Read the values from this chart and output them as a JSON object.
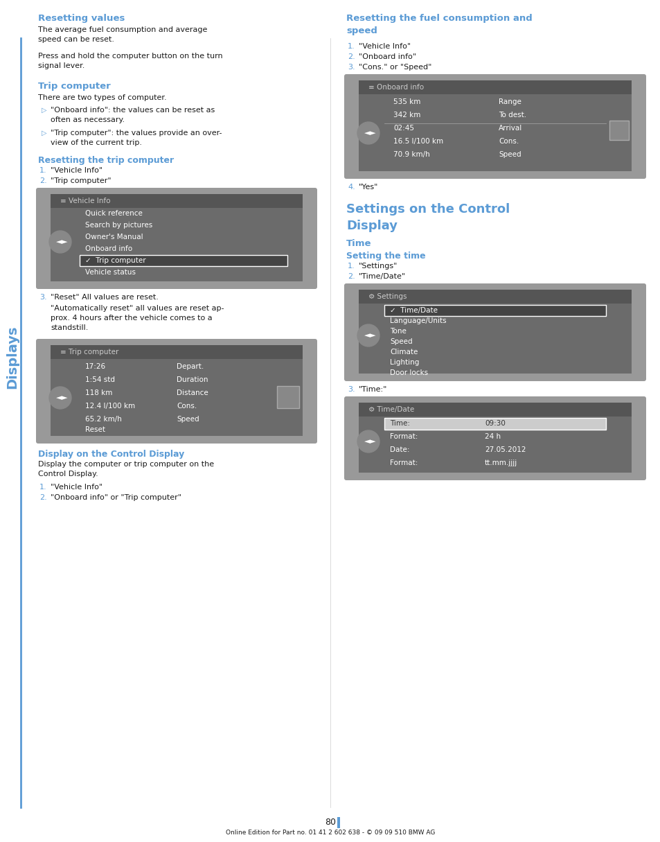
{
  "page_num": "80",
  "footer": "Online Edition for Part no. 01 41 2 602 638 - © 09 09 510 BMW AG",
  "sidebar_text": "Displays",
  "blue_color": "#5b9bd5",
  "dark_blue": "#1f5fa6",
  "text_color": "#1a1a1a",
  "bg_color": "#ffffff",
  "screen_bg": "#808080",
  "screen_dark": "#606060",
  "left_col": {
    "sections": [
      {
        "type": "heading",
        "text": "Resetting values"
      },
      {
        "type": "body",
        "lines": [
          "The average fuel consumption and average",
          "speed can be reset.",
          "Press and hold the computer button on the turn",
          "signal lever."
        ]
      },
      {
        "type": "heading",
        "text": "Trip computer"
      },
      {
        "type": "body",
        "lines": [
          "There are two types of computer."
        ]
      },
      {
        "type": "bullet",
        "lines": [
          "\"Onboard info\": the values can be reset as",
          "often as necessary."
        ]
      },
      {
        "type": "bullet",
        "lines": [
          "\"Trip computer\": the values provide an over-",
          "view of the current trip."
        ]
      },
      {
        "type": "subheading",
        "text": "Resetting the trip computer"
      },
      {
        "type": "numbered",
        "num": "1.",
        "text": "\"Vehicle Info\""
      },
      {
        "type": "numbered",
        "num": "2.",
        "text": "\"Trip computer\""
      }
    ],
    "screen1": {
      "title": "Vehicle Info",
      "items": [
        "Quick reference",
        "Search by pictures",
        "Owner's Manual",
        "Onboard info",
        "✓  Trip computer",
        "Vehicle status"
      ],
      "selected": 4
    },
    "sections2": [
      {
        "type": "numbered",
        "num": "3.",
        "text": "\"Reset\" All values are reset."
      },
      {
        "type": "body",
        "lines": [
          "\"Automatically reset\" all values are reset ap-",
          "prox. 4 hours after the vehicle comes to a",
          "standstill."
        ]
      }
    ],
    "screen2": {
      "title": "Trip computer",
      "rows": [
        [
          "17:26",
          "Depart."
        ],
        [
          "1:54 std",
          "Duration"
        ],
        [
          "118 km",
          "Distance"
        ],
        [
          "12.4 l/100 km",
          "Cons."
        ],
        [
          "65.2 km/h",
          "Speed"
        ]
      ],
      "footer_item": "Reset"
    },
    "sections3": [
      {
        "type": "subheading",
        "text": "Display on the Control Display"
      },
      {
        "type": "body",
        "lines": [
          "Display the computer or trip computer on the",
          "Control Display."
        ]
      },
      {
        "type": "numbered",
        "num": "1.",
        "text": "\"Vehicle Info\""
      },
      {
        "type": "numbered",
        "num": "2.",
        "text": "\"Onboard info\" or \"Trip computer\""
      }
    ]
  },
  "right_col": {
    "sections": [
      {
        "type": "heading",
        "text": "Resetting the fuel consumption and\nspeed"
      },
      {
        "type": "numbered",
        "num": "1.",
        "text": "\"Vehicle Info\""
      },
      {
        "type": "numbered",
        "num": "2.",
        "text": "\"Onboard info\""
      },
      {
        "type": "numbered",
        "num": "3.",
        "text": "\"Cons.\" or \"Speed\""
      }
    ],
    "screen1": {
      "title": "Onboard info",
      "rows": [
        [
          "535 km",
          "Range"
        ],
        [
          "342 km",
          "To dest."
        ],
        [
          "02:45",
          "Arrival"
        ],
        [
          "16.5 l/100 km",
          "Cons."
        ],
        [
          "70.9 km/h",
          "Speed"
        ]
      ],
      "divider_after": 2
    },
    "sections2": [
      {
        "type": "numbered",
        "num": "4.",
        "text": "\"Yes\""
      }
    ],
    "big_heading": "Settings on the Control\nDisplay",
    "sections3": [
      {
        "type": "subheading",
        "text": "Time"
      },
      {
        "type": "subheading2",
        "text": "Setting the time"
      },
      {
        "type": "numbered",
        "num": "1.",
        "text": "\"Settings\""
      },
      {
        "type": "numbered",
        "num": "2.",
        "text": "\"Time/Date\""
      }
    ],
    "screen2": {
      "title": "Settings",
      "items": [
        "✓  Time/Date",
        "Language/Units",
        "Tone",
        "Speed",
        "Climate",
        "Lighting",
        "Door locks"
      ],
      "selected": 0
    },
    "sections4": [
      {
        "type": "numbered",
        "num": "3.",
        "text": "\"Time:\""
      }
    ],
    "screen3": {
      "title": "Time/Date",
      "rows": [
        [
          "Time:",
          "09:30"
        ],
        [
          "Format:",
          "24 h"
        ],
        [
          "Date:",
          "27.05.2012"
        ],
        [
          "Format:",
          "tt.mm.jjjj"
        ]
      ],
      "selected": 0
    }
  }
}
